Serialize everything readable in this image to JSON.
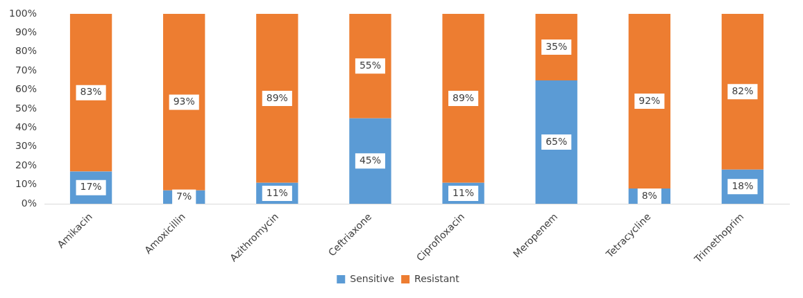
{
  "chart_data": {
    "type": "bar",
    "stacked": true,
    "categories": [
      "Amikacin",
      "Amoxicillin",
      "Azithromycin",
      "Ceftriaxone",
      "Ciprofloxacin",
      "Meropenem",
      "Tetracycline",
      "Trimethoprim"
    ],
    "series": [
      {
        "name": "Sensitive",
        "color": "#5b9bd5",
        "values": [
          17,
          7,
          11,
          45,
          11,
          65,
          8,
          18
        ],
        "value_labels": [
          "17%",
          "7%",
          "11%",
          "45%",
          "11%",
          "65%",
          "8%",
          "18%"
        ]
      },
      {
        "name": "Resistant",
        "color": "#ed7d31",
        "values": [
          83,
          93,
          89,
          55,
          89,
          35,
          92,
          82
        ],
        "value_labels": [
          "83%",
          "93%",
          "89%",
          "55%",
          "89%",
          "35%",
          "92%",
          "82%"
        ]
      }
    ],
    "ylim": [
      0,
      100
    ],
    "yticks": [
      {
        "value": 0,
        "label": "0%"
      },
      {
        "value": 10,
        "label": "10%"
      },
      {
        "value": 20,
        "label": "20%"
      },
      {
        "value": 30,
        "label": "30%"
      },
      {
        "value": 40,
        "label": "40%"
      },
      {
        "value": 50,
        "label": "50%"
      },
      {
        "value": 60,
        "label": "60%"
      },
      {
        "value": 70,
        "label": "70%"
      },
      {
        "value": 80,
        "label": "80%"
      },
      {
        "value": 90,
        "label": "90%"
      },
      {
        "value": 100,
        "label": "100%"
      }
    ],
    "legend": "bottom"
  }
}
